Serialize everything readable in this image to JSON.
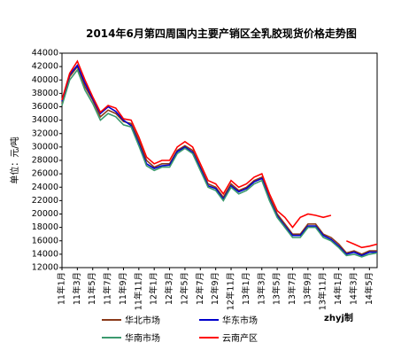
{
  "chart_data": {
    "type": "line",
    "title": "2014年6月第四周国内主要产销区全乳胶现货价格走势图",
    "y_label": "单位：元/吨",
    "annotation": "zhyj制",
    "categories": [
      "11年1月",
      null,
      "11年3月",
      null,
      "11年5月",
      null,
      "11年7月",
      null,
      "11年9月",
      null,
      "11年11月",
      null,
      "12年1月",
      null,
      "12年3月",
      null,
      "12年5月",
      null,
      "12年7月",
      null,
      "12年9月",
      null,
      "12年11月",
      null,
      "13年1月",
      null,
      "13年3月",
      null,
      "13年5月",
      null,
      "13年7月",
      null,
      "13年9月",
      null,
      "13年11月",
      null,
      "14年1月",
      null,
      "14年3月",
      null,
      "14年5月",
      null
    ],
    "series": [
      {
        "name": "华北市场",
        "color": "#8b3a1a",
        "values": [
          36500,
          40500,
          42000,
          39000,
          37000,
          34500,
          35500,
          35000,
          33800,
          33500,
          31000,
          28000,
          27000,
          27500,
          27500,
          29500,
          30200,
          29500,
          27000,
          24500,
          24000,
          22500,
          24500,
          23500,
          24000,
          25000,
          25500,
          22500,
          20000,
          18500,
          17000,
          17000,
          18500,
          18500,
          17000,
          16500,
          15500,
          14200,
          14500,
          14000,
          14500,
          14500
        ]
      },
      {
        "name": "华东市场",
        "color": "#0000cc",
        "values": [
          36800,
          40800,
          42200,
          39500,
          37200,
          35000,
          36000,
          35300,
          34000,
          33200,
          30500,
          27500,
          26800,
          27200,
          27300,
          29300,
          30000,
          29200,
          26800,
          24200,
          23800,
          22200,
          24200,
          23300,
          23800,
          24800,
          25300,
          22200,
          19700,
          18200,
          16800,
          16800,
          18200,
          18200,
          16800,
          16200,
          15200,
          14000,
          14300,
          13800,
          14300,
          14300
        ]
      },
      {
        "name": "华南市场",
        "color": "#3c9a6e",
        "values": [
          36200,
          40000,
          41500,
          38500,
          36500,
          34000,
          35000,
          34500,
          33300,
          33000,
          30200,
          27200,
          26500,
          27000,
          27000,
          29000,
          29800,
          29000,
          26500,
          24000,
          23500,
          22000,
          24000,
          23000,
          23500,
          24500,
          25000,
          22000,
          19500,
          18000,
          16500,
          16500,
          18000,
          18000,
          16500,
          16000,
          15000,
          13800,
          14000,
          13600,
          14000,
          14200
        ]
      },
      {
        "name": "云南产区",
        "color": "#ff0000",
        "values": [
          37000,
          41000,
          42800,
          40000,
          37500,
          35200,
          36200,
          35800,
          34200,
          34000,
          31500,
          28500,
          27500,
          28000,
          28000,
          30000,
          30800,
          30000,
          27500,
          25000,
          24500,
          23000,
          25000,
          24000,
          24500,
          25500,
          26000,
          23000,
          20500,
          19500,
          18000,
          19500,
          20000,
          19800,
          19500,
          19800,
          null,
          16000,
          15500,
          15000,
          15200,
          15500
        ]
      }
    ],
    "ylim": [
      12000,
      44000
    ],
    "yticks": [
      12000,
      14000,
      16000,
      18000,
      20000,
      22000,
      24000,
      26000,
      28000,
      30000,
      32000,
      34000,
      36000,
      38000,
      40000,
      42000,
      44000
    ],
    "legend": "bottom"
  }
}
